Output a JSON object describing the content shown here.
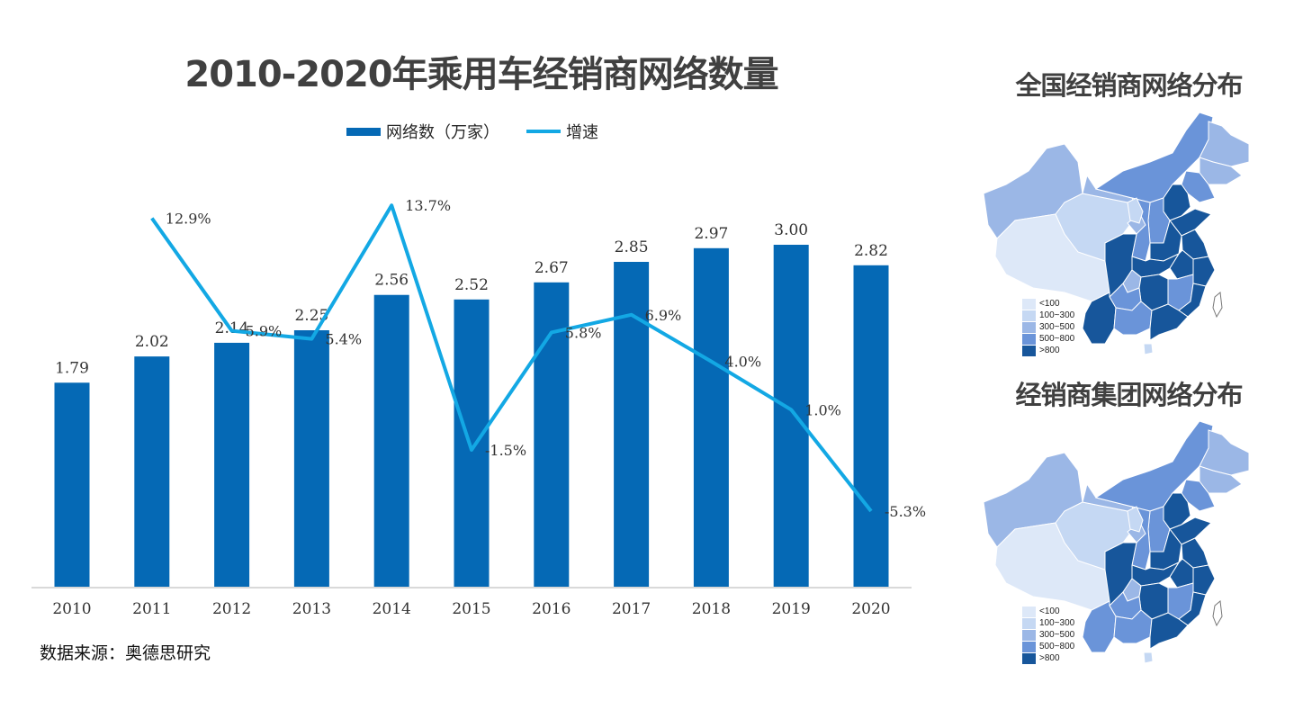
{
  "title": "2010-2020年乘用车经销商网络数量",
  "legend": {
    "bar_label": "网络数（万家）",
    "line_label": "增速"
  },
  "source": "数据来源：奥德思研究",
  "colors": {
    "bar": "#0569B5",
    "line": "#13A8E4",
    "negative_label": "#E03030",
    "axis": "#D9D9D9",
    "title": "#404040"
  },
  "chart_data": {
    "type": "bar",
    "title": "2010-2020年乘用车经销商网络数量",
    "xlabel": "",
    "ylabel": "",
    "categories": [
      "2010",
      "2011",
      "2012",
      "2013",
      "2014",
      "2015",
      "2016",
      "2017",
      "2018",
      "2019",
      "2020"
    ],
    "series": [
      {
        "name": "网络数（万家）",
        "type": "bar",
        "values": [
          1.79,
          2.02,
          2.14,
          2.25,
          2.56,
          2.52,
          2.67,
          2.85,
          2.97,
          3.0,
          2.82
        ],
        "labels": [
          "1.79",
          "2.02",
          "2.14",
          "2.25",
          "2.56",
          "2.52",
          "2.67",
          "2.85",
          "2.97",
          "3.00",
          "2.82"
        ]
      },
      {
        "name": "增速",
        "type": "line",
        "axis": "secondary",
        "values": [
          null,
          12.9,
          5.9,
          5.4,
          13.7,
          -1.5,
          5.8,
          6.9,
          4.0,
          1.0,
          -5.3
        ],
        "labels": [
          "",
          "12.9%",
          "5.9%",
          "5.4%",
          "13.7%",
          "-1.5%",
          "5.8%",
          "6.9%",
          "4.0%",
          "1.0%",
          "-5.3%"
        ]
      }
    ],
    "ylim": [
      0,
      3.6
    ],
    "y2lim": [
      -10,
      15.5
    ],
    "grid": false,
    "legend_position": "top-center"
  },
  "maps": [
    {
      "title": "全国经销商网络分布",
      "legend": [
        {
          "label": "<100",
          "color": "#DDE8F8"
        },
        {
          "label": "100~300",
          "color": "#C5D8F3"
        },
        {
          "label": "300~500",
          "color": "#9BB7E6"
        },
        {
          "label": "500~800",
          "color": "#6A94D9"
        },
        {
          "label": ">800",
          "color": "#17569B"
        }
      ]
    },
    {
      "title": "经销商集团网络分布",
      "legend": [
        {
          "label": "<100",
          "color": "#DDE8F8"
        },
        {
          "label": "100~300",
          "color": "#C5D8F3"
        },
        {
          "label": "300~500",
          "color": "#9BB7E6"
        },
        {
          "label": "500~800",
          "color": "#6A94D9"
        },
        {
          "label": ">800",
          "color": "#17569B"
        }
      ]
    }
  ]
}
